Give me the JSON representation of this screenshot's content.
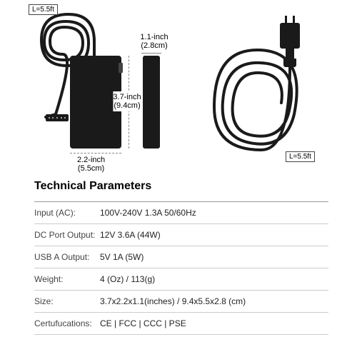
{
  "dimensions": {
    "cable_left_length": "L=5.5ft",
    "cable_right_length": "L=5.5ft",
    "width_top": "1.1-inch",
    "width_top_cm": "(2.8cm)",
    "height_label": "3.7-inch",
    "height_cm": "(9.4cm)",
    "depth_label": "2.2-inch",
    "depth_cm": "(5.5cm)"
  },
  "specs": {
    "heading": "Technical Parameters",
    "rows": [
      {
        "label": "Input (AC):",
        "value": "100V-240V 1.3A 50/60Hz"
      },
      {
        "label": "DC Port Output:",
        "value": "12V 3.6A (44W)"
      },
      {
        "label": "USB A Output:",
        "value": "5V 1A (5W)"
      },
      {
        "label": "Weight:",
        "value": "4 (Oz) / 113(g)"
      },
      {
        "label": "Size:",
        "value": "3.7x2.2x1.1(inches) / 9.4x5.5x2.8 (cm)"
      },
      {
        "label": "Certufucations:",
        "value": "CE | FCC | CCC | PSE"
      }
    ]
  },
  "colors": {
    "device": "#1a1a1a",
    "cable": "#1a1a1a",
    "dim_line": "#888888",
    "divider": "#cccccc",
    "text": "#000000"
  }
}
